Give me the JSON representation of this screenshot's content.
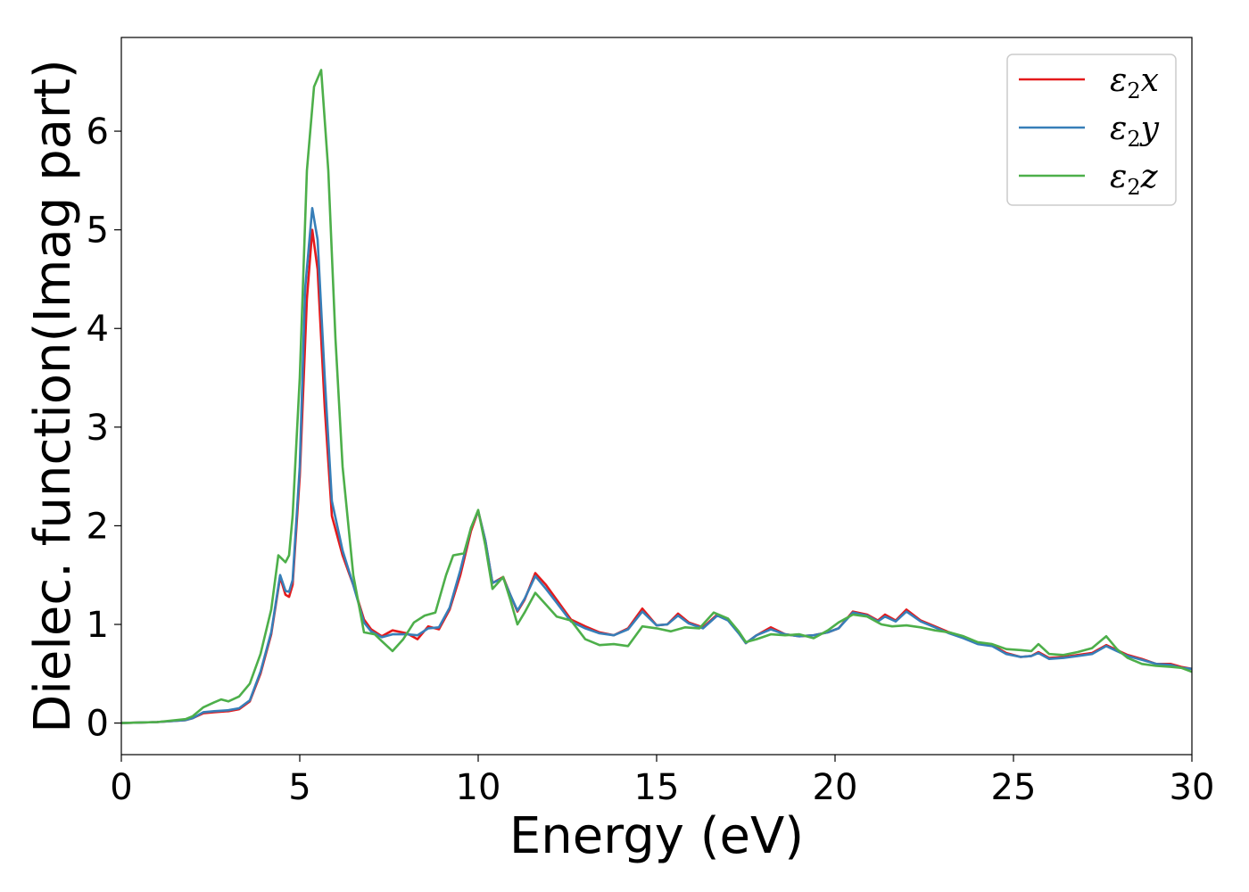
{
  "chart_data": {
    "type": "line",
    "xlabel": "Energy (eV)",
    "ylabel": "Dielec. function(Imag part)",
    "xlim": [
      0,
      30
    ],
    "ylim": [
      -0.32,
      6.95
    ],
    "xticks": [
      0,
      5,
      10,
      15,
      20,
      25,
      30
    ],
    "yticks": [
      0,
      1,
      2,
      3,
      4,
      5,
      6
    ],
    "grid": false,
    "legend_position": "top-right",
    "series": [
      {
        "name": "ε2x",
        "legend_base": "ε",
        "legend_sub": "2",
        "legend_suffix": "x",
        "color": "#e41a1c",
        "points": [
          [
            0,
            0
          ],
          [
            1,
            0.01
          ],
          [
            1.8,
            0.03
          ],
          [
            2.0,
            0.05
          ],
          [
            2.3,
            0.1
          ],
          [
            2.6,
            0.11
          ],
          [
            3.0,
            0.12
          ],
          [
            3.3,
            0.14
          ],
          [
            3.6,
            0.22
          ],
          [
            3.9,
            0.5
          ],
          [
            4.2,
            0.9
          ],
          [
            4.45,
            1.48
          ],
          [
            4.6,
            1.3
          ],
          [
            4.7,
            1.28
          ],
          [
            4.8,
            1.4
          ],
          [
            5.0,
            2.5
          ],
          [
            5.2,
            4.3
          ],
          [
            5.35,
            5.0
          ],
          [
            5.5,
            4.6
          ],
          [
            5.7,
            3.2
          ],
          [
            5.9,
            2.1
          ],
          [
            6.2,
            1.7
          ],
          [
            6.5,
            1.4
          ],
          [
            6.8,
            1.05
          ],
          [
            7.0,
            0.95
          ],
          [
            7.3,
            0.88
          ],
          [
            7.6,
            0.94
          ],
          [
            8.0,
            0.91
          ],
          [
            8.3,
            0.85
          ],
          [
            8.6,
            0.98
          ],
          [
            8.9,
            0.95
          ],
          [
            9.2,
            1.15
          ],
          [
            9.5,
            1.5
          ],
          [
            9.8,
            1.95
          ],
          [
            10.0,
            2.15
          ],
          [
            10.2,
            1.85
          ],
          [
            10.4,
            1.42
          ],
          [
            10.7,
            1.48
          ],
          [
            10.9,
            1.3
          ],
          [
            11.1,
            1.13
          ],
          [
            11.3,
            1.25
          ],
          [
            11.6,
            1.52
          ],
          [
            11.9,
            1.4
          ],
          [
            12.2,
            1.25
          ],
          [
            12.6,
            1.05
          ],
          [
            13.0,
            0.98
          ],
          [
            13.4,
            0.92
          ],
          [
            13.8,
            0.89
          ],
          [
            14.2,
            0.96
          ],
          [
            14.6,
            1.16
          ],
          [
            15.0,
            0.99
          ],
          [
            15.3,
            1.0
          ],
          [
            15.6,
            1.11
          ],
          [
            15.9,
            1.02
          ],
          [
            16.3,
            0.97
          ],
          [
            16.7,
            1.1
          ],
          [
            17.0,
            1.05
          ],
          [
            17.3,
            0.92
          ],
          [
            17.5,
            0.81
          ],
          [
            17.8,
            0.89
          ],
          [
            18.2,
            0.97
          ],
          [
            18.6,
            0.9
          ],
          [
            19.0,
            0.88
          ],
          [
            19.4,
            0.89
          ],
          [
            19.8,
            0.92
          ],
          [
            20.1,
            0.96
          ],
          [
            20.5,
            1.13
          ],
          [
            20.9,
            1.1
          ],
          [
            21.2,
            1.04
          ],
          [
            21.4,
            1.1
          ],
          [
            21.7,
            1.04
          ],
          [
            22.0,
            1.15
          ],
          [
            22.4,
            1.04
          ],
          [
            22.8,
            0.98
          ],
          [
            23.2,
            0.92
          ],
          [
            23.6,
            0.87
          ],
          [
            24.0,
            0.81
          ],
          [
            24.4,
            0.79
          ],
          [
            24.8,
            0.71
          ],
          [
            25.2,
            0.67
          ],
          [
            25.5,
            0.68
          ],
          [
            25.7,
            0.72
          ],
          [
            26.0,
            0.66
          ],
          [
            26.4,
            0.67
          ],
          [
            26.8,
            0.69
          ],
          [
            27.2,
            0.71
          ],
          [
            27.6,
            0.79
          ],
          [
            27.9,
            0.74
          ],
          [
            28.2,
            0.69
          ],
          [
            28.6,
            0.65
          ],
          [
            29.0,
            0.6
          ],
          [
            29.4,
            0.6
          ],
          [
            29.7,
            0.57
          ],
          [
            30.0,
            0.55
          ]
        ]
      },
      {
        "name": "ε2y",
        "legend_base": "ε",
        "legend_sub": "2",
        "legend_suffix": "y",
        "color": "#377eb8",
        "points": [
          [
            0,
            0
          ],
          [
            1,
            0.01
          ],
          [
            1.8,
            0.03
          ],
          [
            2.0,
            0.05
          ],
          [
            2.3,
            0.11
          ],
          [
            2.6,
            0.12
          ],
          [
            3.0,
            0.13
          ],
          [
            3.3,
            0.15
          ],
          [
            3.6,
            0.23
          ],
          [
            3.9,
            0.52
          ],
          [
            4.2,
            0.92
          ],
          [
            4.45,
            1.5
          ],
          [
            4.6,
            1.34
          ],
          [
            4.7,
            1.33
          ],
          [
            4.8,
            1.45
          ],
          [
            5.0,
            2.6
          ],
          [
            5.15,
            4.4
          ],
          [
            5.35,
            5.22
          ],
          [
            5.5,
            4.9
          ],
          [
            5.7,
            3.5
          ],
          [
            5.9,
            2.25
          ],
          [
            6.2,
            1.75
          ],
          [
            6.5,
            1.4
          ],
          [
            6.8,
            1.02
          ],
          [
            7.0,
            0.93
          ],
          [
            7.3,
            0.87
          ],
          [
            7.6,
            0.9
          ],
          [
            8.0,
            0.9
          ],
          [
            8.3,
            0.89
          ],
          [
            8.6,
            0.96
          ],
          [
            8.9,
            0.97
          ],
          [
            9.2,
            1.17
          ],
          [
            9.5,
            1.55
          ],
          [
            9.8,
            1.98
          ],
          [
            10.0,
            2.15
          ],
          [
            10.2,
            1.85
          ],
          [
            10.4,
            1.42
          ],
          [
            10.7,
            1.47
          ],
          [
            10.9,
            1.3
          ],
          [
            11.1,
            1.14
          ],
          [
            11.3,
            1.26
          ],
          [
            11.6,
            1.49
          ],
          [
            11.9,
            1.36
          ],
          [
            12.2,
            1.22
          ],
          [
            12.6,
            1.03
          ],
          [
            13.0,
            0.96
          ],
          [
            13.4,
            0.91
          ],
          [
            13.8,
            0.89
          ],
          [
            14.2,
            0.95
          ],
          [
            14.6,
            1.13
          ],
          [
            15.0,
            0.99
          ],
          [
            15.3,
            1.0
          ],
          [
            15.6,
            1.09
          ],
          [
            15.9,
            1.01
          ],
          [
            16.3,
            0.96
          ],
          [
            16.7,
            1.09
          ],
          [
            17.0,
            1.04
          ],
          [
            17.3,
            0.91
          ],
          [
            17.5,
            0.81
          ],
          [
            17.8,
            0.89
          ],
          [
            18.2,
            0.95
          ],
          [
            18.6,
            0.9
          ],
          [
            19.0,
            0.88
          ],
          [
            19.4,
            0.89
          ],
          [
            19.8,
            0.92
          ],
          [
            20.1,
            0.96
          ],
          [
            20.5,
            1.12
          ],
          [
            20.9,
            1.09
          ],
          [
            21.2,
            1.03
          ],
          [
            21.4,
            1.08
          ],
          [
            21.7,
            1.03
          ],
          [
            22.0,
            1.13
          ],
          [
            22.4,
            1.03
          ],
          [
            22.8,
            0.97
          ],
          [
            23.2,
            0.91
          ],
          [
            23.6,
            0.86
          ],
          [
            24.0,
            0.8
          ],
          [
            24.4,
            0.78
          ],
          [
            24.8,
            0.7
          ],
          [
            25.2,
            0.67
          ],
          [
            25.5,
            0.68
          ],
          [
            25.7,
            0.71
          ],
          [
            26.0,
            0.65
          ],
          [
            26.4,
            0.66
          ],
          [
            26.8,
            0.68
          ],
          [
            27.2,
            0.7
          ],
          [
            27.6,
            0.78
          ],
          [
            27.9,
            0.73
          ],
          [
            28.2,
            0.68
          ],
          [
            28.6,
            0.64
          ],
          [
            29.0,
            0.6
          ],
          [
            29.4,
            0.59
          ],
          [
            29.7,
            0.56
          ],
          [
            30.0,
            0.55
          ]
        ]
      },
      {
        "name": "ε2z",
        "legend_base": "ε",
        "legend_sub": "2",
        "legend_suffix": "z",
        "color": "#4daf4a",
        "points": [
          [
            0,
            0
          ],
          [
            1,
            0.01
          ],
          [
            1.8,
            0.04
          ],
          [
            2.0,
            0.07
          ],
          [
            2.3,
            0.16
          ],
          [
            2.6,
            0.21
          ],
          [
            2.8,
            0.24
          ],
          [
            3.0,
            0.22
          ],
          [
            3.3,
            0.27
          ],
          [
            3.6,
            0.4
          ],
          [
            3.9,
            0.7
          ],
          [
            4.2,
            1.15
          ],
          [
            4.4,
            1.7
          ],
          [
            4.6,
            1.63
          ],
          [
            4.7,
            1.7
          ],
          [
            4.8,
            2.1
          ],
          [
            5.0,
            3.5
          ],
          [
            5.2,
            5.6
          ],
          [
            5.4,
            6.45
          ],
          [
            5.6,
            6.62
          ],
          [
            5.8,
            5.6
          ],
          [
            6.0,
            3.9
          ],
          [
            6.2,
            2.6
          ],
          [
            6.5,
            1.5
          ],
          [
            6.8,
            0.92
          ],
          [
            7.1,
            0.9
          ],
          [
            7.3,
            0.83
          ],
          [
            7.6,
            0.73
          ],
          [
            7.9,
            0.85
          ],
          [
            8.2,
            1.02
          ],
          [
            8.5,
            1.09
          ],
          [
            8.8,
            1.12
          ],
          [
            9.1,
            1.5
          ],
          [
            9.3,
            1.7
          ],
          [
            9.6,
            1.72
          ],
          [
            9.8,
            1.98
          ],
          [
            10.0,
            2.16
          ],
          [
            10.2,
            1.8
          ],
          [
            10.4,
            1.36
          ],
          [
            10.7,
            1.48
          ],
          [
            10.9,
            1.25
          ],
          [
            11.1,
            1.0
          ],
          [
            11.3,
            1.12
          ],
          [
            11.6,
            1.32
          ],
          [
            11.9,
            1.2
          ],
          [
            12.2,
            1.08
          ],
          [
            12.6,
            1.04
          ],
          [
            13.0,
            0.85
          ],
          [
            13.4,
            0.79
          ],
          [
            13.8,
            0.8
          ],
          [
            14.2,
            0.78
          ],
          [
            14.6,
            0.98
          ],
          [
            15.0,
            0.96
          ],
          [
            15.4,
            0.93
          ],
          [
            15.8,
            0.97
          ],
          [
            16.2,
            0.96
          ],
          [
            16.6,
            1.12
          ],
          [
            17.0,
            1.06
          ],
          [
            17.3,
            0.93
          ],
          [
            17.5,
            0.82
          ],
          [
            17.8,
            0.85
          ],
          [
            18.2,
            0.9
          ],
          [
            18.6,
            0.89
          ],
          [
            19.0,
            0.9
          ],
          [
            19.4,
            0.86
          ],
          [
            19.8,
            0.94
          ],
          [
            20.1,
            1.02
          ],
          [
            20.5,
            1.1
          ],
          [
            20.9,
            1.08
          ],
          [
            21.3,
            1.0
          ],
          [
            21.6,
            0.98
          ],
          [
            22.0,
            0.99
          ],
          [
            22.4,
            0.97
          ],
          [
            22.8,
            0.94
          ],
          [
            23.2,
            0.92
          ],
          [
            23.6,
            0.88
          ],
          [
            24.0,
            0.82
          ],
          [
            24.4,
            0.8
          ],
          [
            24.8,
            0.75
          ],
          [
            25.2,
            0.74
          ],
          [
            25.5,
            0.73
          ],
          [
            25.7,
            0.8
          ],
          [
            26.0,
            0.7
          ],
          [
            26.4,
            0.69
          ],
          [
            26.8,
            0.72
          ],
          [
            27.2,
            0.76
          ],
          [
            27.6,
            0.88
          ],
          [
            27.9,
            0.75
          ],
          [
            28.2,
            0.66
          ],
          [
            28.6,
            0.6
          ],
          [
            29.0,
            0.58
          ],
          [
            29.4,
            0.57
          ],
          [
            29.7,
            0.56
          ],
          [
            30.0,
            0.52
          ]
        ]
      }
    ]
  }
}
